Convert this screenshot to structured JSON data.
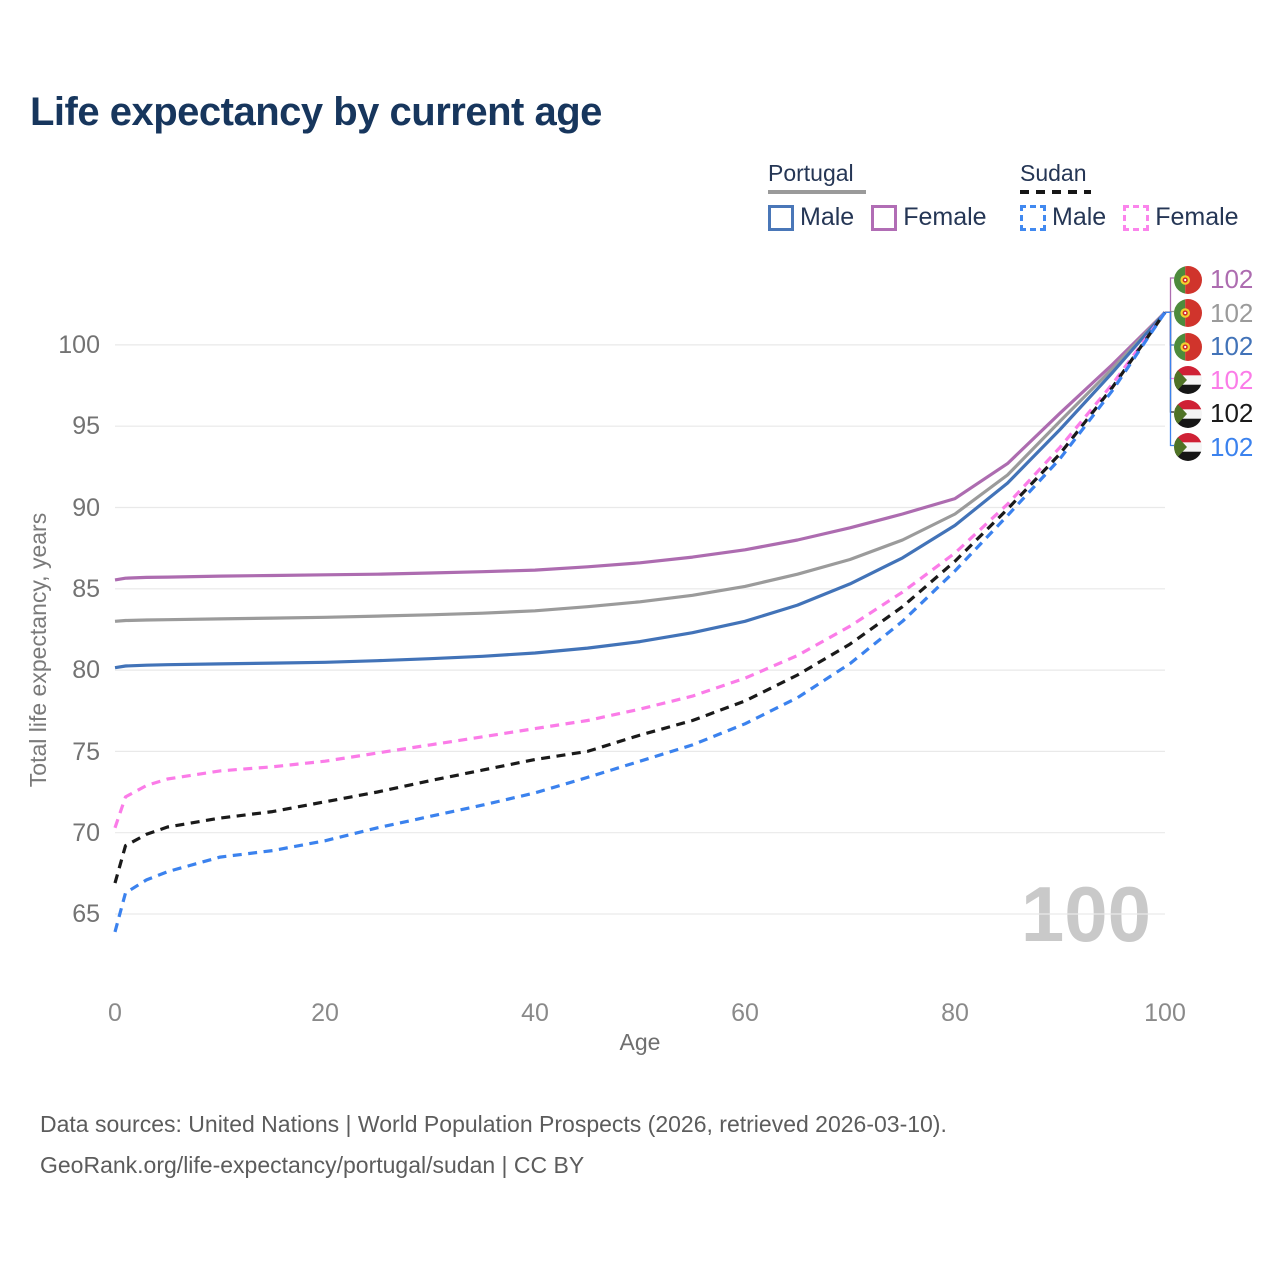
{
  "title": "Life expectancy by current age",
  "legend": {
    "groups": [
      {
        "label": "Portugal",
        "line_style": "solid",
        "underline_color": "#9a9a9a",
        "items": [
          {
            "label": "Male",
            "color": "#4a77b8"
          },
          {
            "label": "Female",
            "color": "#b16db5"
          }
        ]
      },
      {
        "label": "Sudan",
        "line_style": "dashed",
        "underline_color": "#161616",
        "items": [
          {
            "label": "Male",
            "color": "#4189f0"
          },
          {
            "label": "Female",
            "color": "#fb84ec"
          }
        ]
      }
    ]
  },
  "chart_data": {
    "type": "line",
    "title": "Life expectancy by current age",
    "xlabel": "Age",
    "ylabel": "Total life expectancy, years",
    "x_ticks": [
      0,
      20,
      40,
      60,
      80,
      100
    ],
    "y_ticks": [
      65,
      70,
      75,
      80,
      85,
      90,
      95,
      100
    ],
    "xlim": [
      0,
      100
    ],
    "ylim": [
      63,
      103
    ],
    "grid": "horizontal",
    "legend_position": "top-right",
    "age_indicator": "100",
    "x": [
      0,
      1,
      3,
      5,
      10,
      15,
      20,
      25,
      30,
      35,
      40,
      45,
      50,
      55,
      60,
      65,
      70,
      75,
      80,
      85,
      90,
      95,
      100
    ],
    "series": [
      {
        "id": "portugal-female",
        "name": "Portugal Female",
        "flag": "portugal",
        "style": "solid",
        "color": "#ad6cb0",
        "end_label": "102",
        "values": [
          85.55,
          85.65,
          85.7,
          85.72,
          85.78,
          85.82,
          85.86,
          85.9,
          85.97,
          86.05,
          86.15,
          86.35,
          86.6,
          86.95,
          87.4,
          88.0,
          88.75,
          89.6,
          90.55,
          92.7,
          95.8,
          98.8,
          102
        ]
      },
      {
        "id": "portugal-both",
        "name": "Portugal",
        "flag": "portugal",
        "style": "solid",
        "color": "#9b9b9b",
        "end_label": "102",
        "values": [
          83.0,
          83.05,
          83.08,
          83.1,
          83.15,
          83.2,
          83.25,
          83.32,
          83.4,
          83.5,
          83.65,
          83.9,
          84.2,
          84.6,
          85.15,
          85.9,
          86.8,
          88.0,
          89.6,
          92.0,
          95.3,
          98.55,
          102
        ]
      },
      {
        "id": "portugal-male",
        "name": "Portugal Male",
        "flag": "portugal",
        "style": "solid",
        "color": "#4273b8",
        "end_label": "102",
        "values": [
          80.15,
          80.25,
          80.3,
          80.33,
          80.38,
          80.43,
          80.48,
          80.58,
          80.7,
          80.85,
          81.05,
          81.35,
          81.75,
          82.3,
          83.0,
          84.0,
          85.3,
          86.9,
          88.9,
          91.5,
          94.8,
          98.3,
          102
        ]
      },
      {
        "id": "sudan-female",
        "name": "Sudan Female",
        "flag": "sudan",
        "style": "dashed",
        "color": "#fb7ce8",
        "end_label": "102",
        "values": [
          70.3,
          72.2,
          72.9,
          73.3,
          73.8,
          74.05,
          74.4,
          74.9,
          75.4,
          75.9,
          76.4,
          76.9,
          77.6,
          78.4,
          79.5,
          80.9,
          82.7,
          84.8,
          87.2,
          90.2,
          93.7,
          97.6,
          102
        ]
      },
      {
        "id": "sudan-both",
        "name": "Sudan",
        "flag": "sudan",
        "style": "dashed",
        "color": "#1a1a1a",
        "end_label": "102",
        "values": [
          66.9,
          69.2,
          69.9,
          70.35,
          70.9,
          71.3,
          71.9,
          72.5,
          73.2,
          73.85,
          74.5,
          75.0,
          76.0,
          76.9,
          78.1,
          79.7,
          81.6,
          83.9,
          86.7,
          89.9,
          93.3,
          97.4,
          102
        ]
      },
      {
        "id": "sudan-male",
        "name": "Sudan Male",
        "flag": "sudan",
        "style": "dashed",
        "color": "#3b82ee",
        "end_label": "102",
        "values": [
          63.9,
          66.3,
          67.1,
          67.6,
          68.5,
          68.9,
          69.5,
          70.3,
          71.0,
          71.7,
          72.45,
          73.4,
          74.4,
          75.4,
          76.7,
          78.3,
          80.4,
          83.0,
          86.1,
          89.5,
          93.0,
          97.2,
          102
        ]
      }
    ]
  },
  "footer": {
    "line1": "Data sources: United Nations | World Population Prospects (2026, retrieved 2026-03-10).",
    "line2": "GeoRank.org/life-expectancy/portugal/sudan | CC BY"
  }
}
